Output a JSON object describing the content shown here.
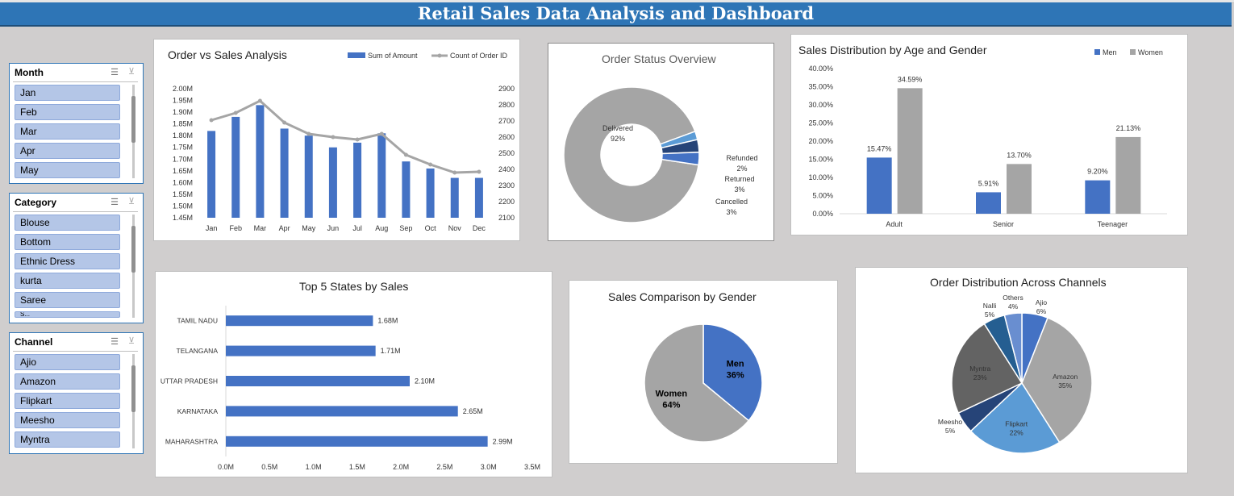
{
  "dashboard_title": "Retail Sales Data Analysis and Dashboard",
  "slicers": [
    {
      "title": "Month",
      "items": [
        "Jan",
        "Feb",
        "Mar",
        "Apr",
        "May"
      ],
      "partial": ""
    },
    {
      "title": "Category",
      "items": [
        "Blouse",
        "Bottom",
        "Ethnic Dress",
        "kurta",
        "Saree"
      ],
      "partial": "S..."
    },
    {
      "title": "Channel",
      "items": [
        "Ajio",
        "Amazon",
        "Flipkart",
        "Meesho",
        "Myntra"
      ],
      "partial": ""
    }
  ],
  "slicer_icons": {
    "multi_select": "multi-select-icon",
    "clear_filter": "clear-filter-icon"
  },
  "colors": {
    "blue": "#4472c4",
    "gray": "#a5a5a5",
    "dark_blue": "#264478",
    "light_blue": "#5b9bd5",
    "dark_gray": "#636363",
    "title_bar": "#2e75b6"
  },
  "chart_data": [
    {
      "type": "bar+line",
      "title": "Order vs Sales Analysis",
      "categories": [
        "Jan",
        "Feb",
        "Mar",
        "Apr",
        "May",
        "Jun",
        "Jul",
        "Aug",
        "Sep",
        "Oct",
        "Nov",
        "Dec"
      ],
      "series": [
        {
          "name": "Sum of Amount",
          "kind": "bar",
          "axis": "left",
          "values": [
            1.82,
            1.88,
            1.93,
            1.83,
            1.8,
            1.75,
            1.77,
            1.81,
            1.69,
            1.66,
            1.62,
            1.62
          ]
        },
        {
          "name": "Count of Order ID",
          "kind": "line",
          "axis": "right",
          "values": [
            2705,
            2750,
            2825,
            2690,
            2620,
            2600,
            2585,
            2620,
            2490,
            2430,
            2380,
            2385
          ]
        }
      ],
      "y_left_ticks": [
        "2.00M",
        "1.95M",
        "1.90M",
        "1.85M",
        "1.80M",
        "1.75M",
        "1.70M",
        "1.65M",
        "1.60M",
        "1.55M",
        "1.50M",
        "1.45M"
      ],
      "y_right_ticks": [
        "2900",
        "2800",
        "2700",
        "2600",
        "2500",
        "2400",
        "2300",
        "2200",
        "2100"
      ],
      "ylim_left": [
        1.45,
        2.0
      ],
      "ylim_right": [
        2100,
        2900
      ],
      "legend": "top-right"
    },
    {
      "type": "pie",
      "subtype": "donut",
      "title": "Order Status Overview",
      "slices": [
        {
          "name": "Delivered",
          "value": 92,
          "label": "92%"
        },
        {
          "name": "Refunded",
          "value": 2,
          "label": "2%"
        },
        {
          "name": "Returned",
          "value": 3,
          "label": "3%"
        },
        {
          "name": "Cancelled",
          "value": 3,
          "label": "3%"
        }
      ]
    },
    {
      "type": "bar",
      "title": "Sales Distribution by Age and Gender",
      "categories": [
        "Adult",
        "Senior",
        "Teenager"
      ],
      "series": [
        {
          "name": "Men",
          "values": [
            15.47,
            5.91,
            9.2
          ],
          "labels": [
            "15.47%",
            "5.91%",
            "9.20%"
          ]
        },
        {
          "name": "Women",
          "values": [
            34.59,
            13.7,
            21.13
          ],
          "labels": [
            "34.59%",
            "13.70%",
            "21.13%"
          ]
        }
      ],
      "y_ticks": [
        "40.00%",
        "35.00%",
        "30.00%",
        "25.00%",
        "20.00%",
        "15.00%",
        "10.00%",
        "5.00%",
        "0.00%"
      ],
      "ylim": [
        0,
        40
      ],
      "legend": "top-right"
    },
    {
      "type": "bar",
      "orientation": "horizontal",
      "title": "Top 5 States by Sales",
      "categories": [
        "TAMIL NADU",
        "TELANGANA",
        "UTTAR PRADESH",
        "KARNATAKA",
        "MAHARASHTRA"
      ],
      "values": [
        1.68,
        1.71,
        2.1,
        2.65,
        2.99
      ],
      "value_labels": [
        "1.68M",
        "1.71M",
        "2.10M",
        "2.65M",
        "2.99M"
      ],
      "x_ticks": [
        "0.0M",
        "0.5M",
        "1.0M",
        "1.5M",
        "2.0M",
        "2.5M",
        "3.0M",
        "3.5M"
      ],
      "xlim": [
        0,
        3.5
      ]
    },
    {
      "type": "pie",
      "title": "Sales Comparison by Gender",
      "slices": [
        {
          "name": "Men",
          "value": 36,
          "label": "36%"
        },
        {
          "name": "Women",
          "value": 64,
          "label": "64%"
        }
      ]
    },
    {
      "type": "pie",
      "title": "Order Distribution Across Channels",
      "slices": [
        {
          "name": "Ajio",
          "value": 6,
          "label": "6%"
        },
        {
          "name": "Amazon",
          "value": 35,
          "label": "35%"
        },
        {
          "name": "Flipkart",
          "value": 22,
          "label": "22%"
        },
        {
          "name": "Meesho",
          "value": 5,
          "label": "5%"
        },
        {
          "name": "Myntra",
          "value": 23,
          "label": "23%"
        },
        {
          "name": "Nalli",
          "value": 5,
          "label": "5%"
        },
        {
          "name": "Others",
          "value": 4,
          "label": "4%"
        }
      ]
    }
  ]
}
